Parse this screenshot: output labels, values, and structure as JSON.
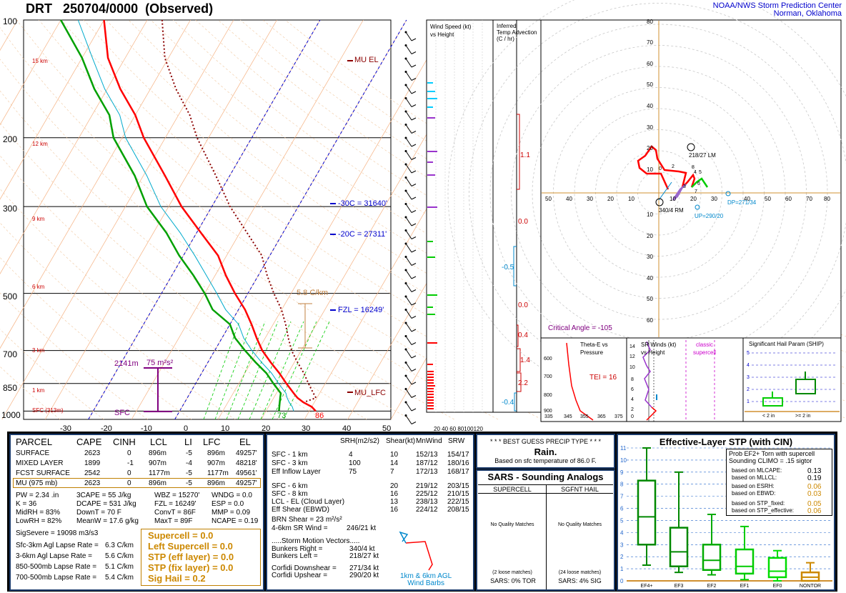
{
  "header": {
    "title": "DRT   250704/0000  (Observed)",
    "org_line1": "NOAA/NWS Storm Prediction Center",
    "org_line2": "Norman, Oklahoma"
  },
  "skewt": {
    "pressure_labels": [
      "100",
      "200",
      "300",
      "500",
      "700",
      "850",
      "1000"
    ],
    "temp_labels": [
      "-30",
      "-20",
      "-10",
      "0",
      "10",
      "20",
      "30",
      "40",
      "50"
    ],
    "height_labels": [
      "15 km",
      "12 km",
      "9 km",
      "6 km",
      "3 km",
      "1 km",
      "SFC (313m)"
    ],
    "annotations": {
      "mu_el": "MU  EL",
      "mu_lfc": "MU_LFC",
      "minus30": "-30C = 31640'",
      "minus20": "-20C = 27311'",
      "fzl": "FZL = 16249'",
      "lapse": "5.8 C/km",
      "eff_inflow": "2141m",
      "eff_srh": "75 m²s²",
      "sfc": "SFC",
      "sfc_td": "73",
      "sfc_t": "86"
    }
  },
  "wind_speed_panel": {
    "title_l1": "Wind Speed (kt)",
    "title_l2": "vs Height",
    "axis": "20 40 60 80100120"
  },
  "temp_adv_panel": {
    "title_l1": "Inferred",
    "title_l2": "Temp Advection",
    "title_l3": "(C / hr)",
    "values": [
      "1.1",
      "0.0",
      "-0.5",
      "0.0",
      "0.4",
      "1.4",
      "2.2",
      "-0.4"
    ]
  },
  "hodograph": {
    "x_ticks": [
      "50",
      "40",
      "30",
      "20",
      "10",
      "10",
      "20",
      "30",
      "40",
      "50",
      "60",
      "70",
      "80"
    ],
    "y_ticks_up": [
      "80",
      "70",
      "60",
      "50",
      "40",
      "30",
      "20",
      "10"
    ],
    "y_ticks_down": [
      "10",
      "20",
      "30",
      "40",
      "50",
      "60"
    ],
    "lm_label": "218/27 LM",
    "rm_label": "340/4 RM",
    "dp_label": "DP=271/34",
    "up_label": "UP=290/20",
    "critical_angle": "Critical Angle = -105",
    "heights": [
      "0",
      "2",
      "8",
      "4",
      "5",
      "6",
      "3",
      "7"
    ]
  },
  "theta_panel": {
    "title_l1": "Theta-E vs",
    "title_l2": "Pressure",
    "tei": "TEI = 16",
    "y_ticks": [
      "600",
      "700",
      "800",
      "900"
    ],
    "x_ticks": [
      "335",
      "345",
      "355",
      "365",
      "375"
    ]
  },
  "sr_panel": {
    "title_l1": "SR Winds (kt)",
    "title_l2": "vs Height",
    "classic_l1": "classic",
    "classic_l2": "supercell",
    "y_ticks": [
      "14",
      "12",
      "10",
      "8",
      "6",
      "4",
      "2",
      "0"
    ]
  },
  "ship_panel": {
    "title": "Significant Hail Param (SHIP)",
    "y_ticks": [
      "5",
      "4",
      "3",
      "2",
      "1"
    ],
    "x_labels": [
      "< 2 in",
      ">= 2 in"
    ]
  },
  "parcel_table": {
    "headers": [
      "PARCEL",
      "CAPE",
      "CINH",
      "LCL",
      "LI",
      "LFC",
      "EL"
    ],
    "rows": [
      [
        "SURFACE",
        "2623",
        "0",
        "896m",
        "-5",
        "896m",
        "49257'"
      ],
      [
        "MIXED LAYER",
        "1899",
        "-1",
        "907m",
        "-4",
        "907m",
        "48218'"
      ],
      [
        "FCST SURFACE",
        "2542",
        "0",
        "1177m",
        "-5",
        "1177m",
        "49561'"
      ],
      [
        "MU    (975 mb)",
        "2623",
        "0",
        "896m",
        "-5",
        "896m",
        "49257'"
      ]
    ],
    "thermo": [
      [
        "PW = 2.34 .in",
        "3CAPE = 55 J/kg",
        "WBZ = 15270'",
        "WNDG = 0.0"
      ],
      [
        "K = 36",
        "DCAPE = 531 J/kg",
        "FZL = 16249'",
        "ESP = 0.0"
      ],
      [
        "MidRH = 83%",
        "DownT = 70 F",
        "ConvT = 86F",
        "MMP = 0.09"
      ],
      [
        "LowRH = 82%",
        "MeanW = 17.6 g/kg",
        "MaxT = 89F",
        "NCAPE = 0.19"
      ]
    ],
    "sig_severe": "SigSevere = 19098 m3/s3",
    "lapse_rates": [
      [
        "Sfc-3km Agl Lapse Rate =",
        "6.3 C/km"
      ],
      [
        "3-6km Agl Lapse Rate =",
        "5.6 C/km"
      ],
      [
        "850-500mb Lapse Rate =",
        "5.1 C/km"
      ],
      [
        "700-500mb Lapse Rate =",
        "5.4 C/km"
      ]
    ],
    "composites": [
      "Supercell = 0.0",
      "Left Supercell = 0.0",
      "STP (eff layer) = 0.0",
      "STP (fix layer) = 0.0",
      "Sig Hail = 0.2"
    ]
  },
  "kinematic_table": {
    "headers": [
      "SRH(m2/s2)",
      "Shear(kt)",
      "MnWind",
      "SRW"
    ],
    "rows": [
      [
        "SFC - 1 km",
        "4",
        "10",
        "152/13",
        "154/17"
      ],
      [
        "SFC - 3 km",
        "100",
        "14",
        "187/12",
        "180/16"
      ],
      [
        "Eff Inflow Layer",
        "75",
        "7",
        "172/13",
        "168/17"
      ],
      [
        "SFC - 6 km",
        "20",
        "219/12",
        "203/15"
      ],
      [
        "SFC - 8 km",
        "16",
        "225/12",
        "210/15"
      ],
      [
        "LCL - EL (Cloud Layer)",
        "13",
        "238/13",
        "222/15"
      ],
      [
        "Eff Shear (EBWD)",
        "16",
        "224/12",
        "208/15"
      ]
    ],
    "brn_shear": "BRN Shear = 23 m²/s²",
    "sr_wind": "4-6km SR Wind =",
    "sr_wind_val": "246/21 kt",
    "storm_motion_title": ".....Storm Motion Vectors.....",
    "motions": [
      [
        "Bunkers Right =",
        "340/4 kt"
      ],
      [
        "Bunkers Left =",
        "218/27 kt"
      ],
      [
        "Corfidi Downshear =",
        "271/34 kt"
      ],
      [
        "Corfidi Upshear =",
        "290/20 kt"
      ]
    ],
    "barb_label_l1": "1km & 6km AGL",
    "barb_label_l2": "Wind Barbs"
  },
  "precip": {
    "title": "* * * BEST GUESS PRECIP TYPE * * *",
    "type": "Rain.",
    "note": "Based on sfc temperature of 86.0 F."
  },
  "sars": {
    "title": "SARS - Sounding Analogs",
    "col1": "SUPERCELL",
    "col2": "SGFNT HAIL",
    "no_match": "No Quality Matches",
    "loose1": "(2 loose matches)",
    "loose2": "(24 loose matches)",
    "tor": "SARS:  0% TOR",
    "sig": "SARS:  4% SIG"
  },
  "stp_panel": {
    "title": "Effective-Layer STP (with CIN)",
    "prob_l1": "Prob EF2+ Torn with supercell",
    "prob_l2": "Sounding CLIMO = .15 sigtor",
    "probs": [
      [
        "based on MLCAPE:",
        "0.13"
      ],
      [
        "based on MLLCL:",
        "0.19"
      ],
      [
        "based on ESRH:",
        "0.06"
      ],
      [
        "based on EBWD:",
        "0.03"
      ],
      [
        "based on STP_fixed:",
        "0.05"
      ],
      [
        "based on STP_effective:",
        "0.06"
      ]
    ],
    "y_ticks": [
      "11",
      "10",
      "9",
      "8",
      "7",
      "6",
      "5",
      "4",
      "3",
      "2",
      "1",
      "0"
    ],
    "categories": [
      "EF4+",
      "EF3",
      "EF2",
      "EF1",
      "EF0",
      "NONTOR"
    ]
  },
  "colors": {
    "temp": "#ff0000",
    "dewpoint": "#00a000",
    "parcel": "#990000",
    "isotherm": "#0000cc",
    "panel_bg": "#000000",
    "stp_box": "#008800"
  },
  "chart_data": [
    {
      "type": "line",
      "title": "DRT   250704/0000  (Observed)",
      "xlabel": "",
      "ylabel": "",
      "pressure_levels_mb": [
        1000,
        975,
        950,
        925,
        900,
        850,
        800,
        750,
        700,
        650,
        600,
        550,
        500,
        450,
        400,
        350,
        300,
        250,
        200,
        175,
        150,
        125,
        100
      ],
      "series": [
        {
          "values": [
            31.5,
            30,
            27.5,
            25.5,
            24,
            21,
            18,
            14.5,
            11,
            8,
            5,
            1.5,
            -3,
            -7.5,
            -12,
            -19,
            -27,
            -35,
            -45,
            -50,
            -57,
            -64,
            -70
          ]
        },
        {
          "values": [
            23,
            22.5,
            22,
            21.5,
            21,
            18,
            15,
            11,
            7,
            3,
            0,
            -6,
            -10,
            -15,
            -21,
            -27,
            -35,
            -42,
            -52,
            -56,
            -63,
            -70,
            -80
          ]
        }
      ],
      "xlim": [
        -30,
        50
      ],
      "ylim": [
        1000,
        100
      ]
    },
    {
      "type": "box",
      "title": "Effective-Layer STP (with CIN)",
      "categories": [
        "EF4+",
        "EF3",
        "EF2",
        "EF1",
        "EF0",
        "NONTOR"
      ],
      "series": [
        {
          "name": "whisker_low",
          "values": [
            1.3,
            0.7,
            0.5,
            0.1,
            0.0,
            0.0
          ]
        },
        {
          "name": "q1",
          "values": [
            3.0,
            1.2,
            0.9,
            0.6,
            0.3,
            0.0
          ]
        },
        {
          "name": "median",
          "values": [
            5.3,
            2.4,
            1.7,
            1.2,
            0.8,
            0.3
          ]
        },
        {
          "name": "q3",
          "values": [
            8.3,
            4.4,
            3.0,
            2.6,
            1.9,
            0.7
          ]
        },
        {
          "name": "whisker_high",
          "values": [
            11.0,
            9.0,
            5.5,
            4.5,
            2.5,
            1.5
          ]
        }
      ],
      "ylim": [
        0,
        11
      ]
    }
  ]
}
